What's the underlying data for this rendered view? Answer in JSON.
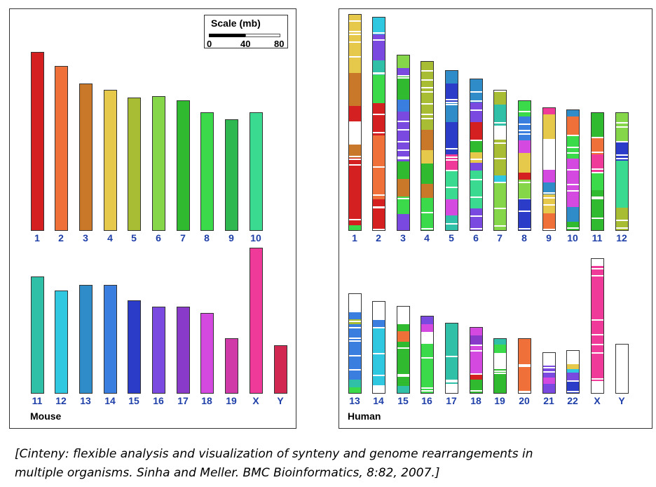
{
  "mouse": {
    "panel_label": "Mouse",
    "scale": {
      "title": "Scale (mb)",
      "ticks": [
        "0",
        "40",
        "80"
      ]
    },
    "chromosomes": [
      {
        "label": "1",
        "color": "#d42020"
      },
      {
        "label": "2",
        "color": "#f0703a"
      },
      {
        "label": "3",
        "color": "#c87828"
      },
      {
        "label": "4",
        "color": "#e6c84a"
      },
      {
        "label": "5",
        "color": "#a9bd34"
      },
      {
        "label": "6",
        "color": "#86d64a"
      },
      {
        "label": "7",
        "color": "#2fba30"
      },
      {
        "label": "8",
        "color": "#3ada4a"
      },
      {
        "label": "9",
        "color": "#2fb850"
      },
      {
        "label": "10",
        "color": "#3ada90"
      },
      {
        "label": "11",
        "color": "#30c0a8"
      },
      {
        "label": "12",
        "color": "#30c8e0"
      },
      {
        "label": "13",
        "color": "#2f8cc8"
      },
      {
        "label": "14",
        "color": "#3a7ee0"
      },
      {
        "label": "15",
        "color": "#2a3cc8"
      },
      {
        "label": "16",
        "color": "#7a4ae0"
      },
      {
        "label": "17",
        "color": "#8a3ac8"
      },
      {
        "label": "18",
        "color": "#d44ae0"
      },
      {
        "label": "19",
        "color": "#d03aa8"
      },
      {
        "label": "X",
        "color": "#f03a9a"
      },
      {
        "label": "Y",
        "color": "#d02850"
      }
    ]
  },
  "human": {
    "panel_label": "Human",
    "chromosomes": [
      {
        "label": "1"
      },
      {
        "label": "2"
      },
      {
        "label": "3"
      },
      {
        "label": "4"
      },
      {
        "label": "5"
      },
      {
        "label": "6"
      },
      {
        "label": "7"
      },
      {
        "label": "8"
      },
      {
        "label": "9"
      },
      {
        "label": "10"
      },
      {
        "label": "11"
      },
      {
        "label": "12"
      },
      {
        "label": "13"
      },
      {
        "label": "14"
      },
      {
        "label": "15"
      },
      {
        "label": "16"
      },
      {
        "label": "17"
      },
      {
        "label": "18"
      },
      {
        "label": "19"
      },
      {
        "label": "20"
      },
      {
        "label": "21"
      },
      {
        "label": "22"
      },
      {
        "label": "X"
      },
      {
        "label": "Y"
      }
    ]
  },
  "caption": {
    "line1": "[Cinteny: flexible analysis and visualization of synteny and genome rearrangements in",
    "line2": "multiple organisms. Sinha and Meller. BMC Bioinformatics, 8:82, 2007.]"
  }
}
